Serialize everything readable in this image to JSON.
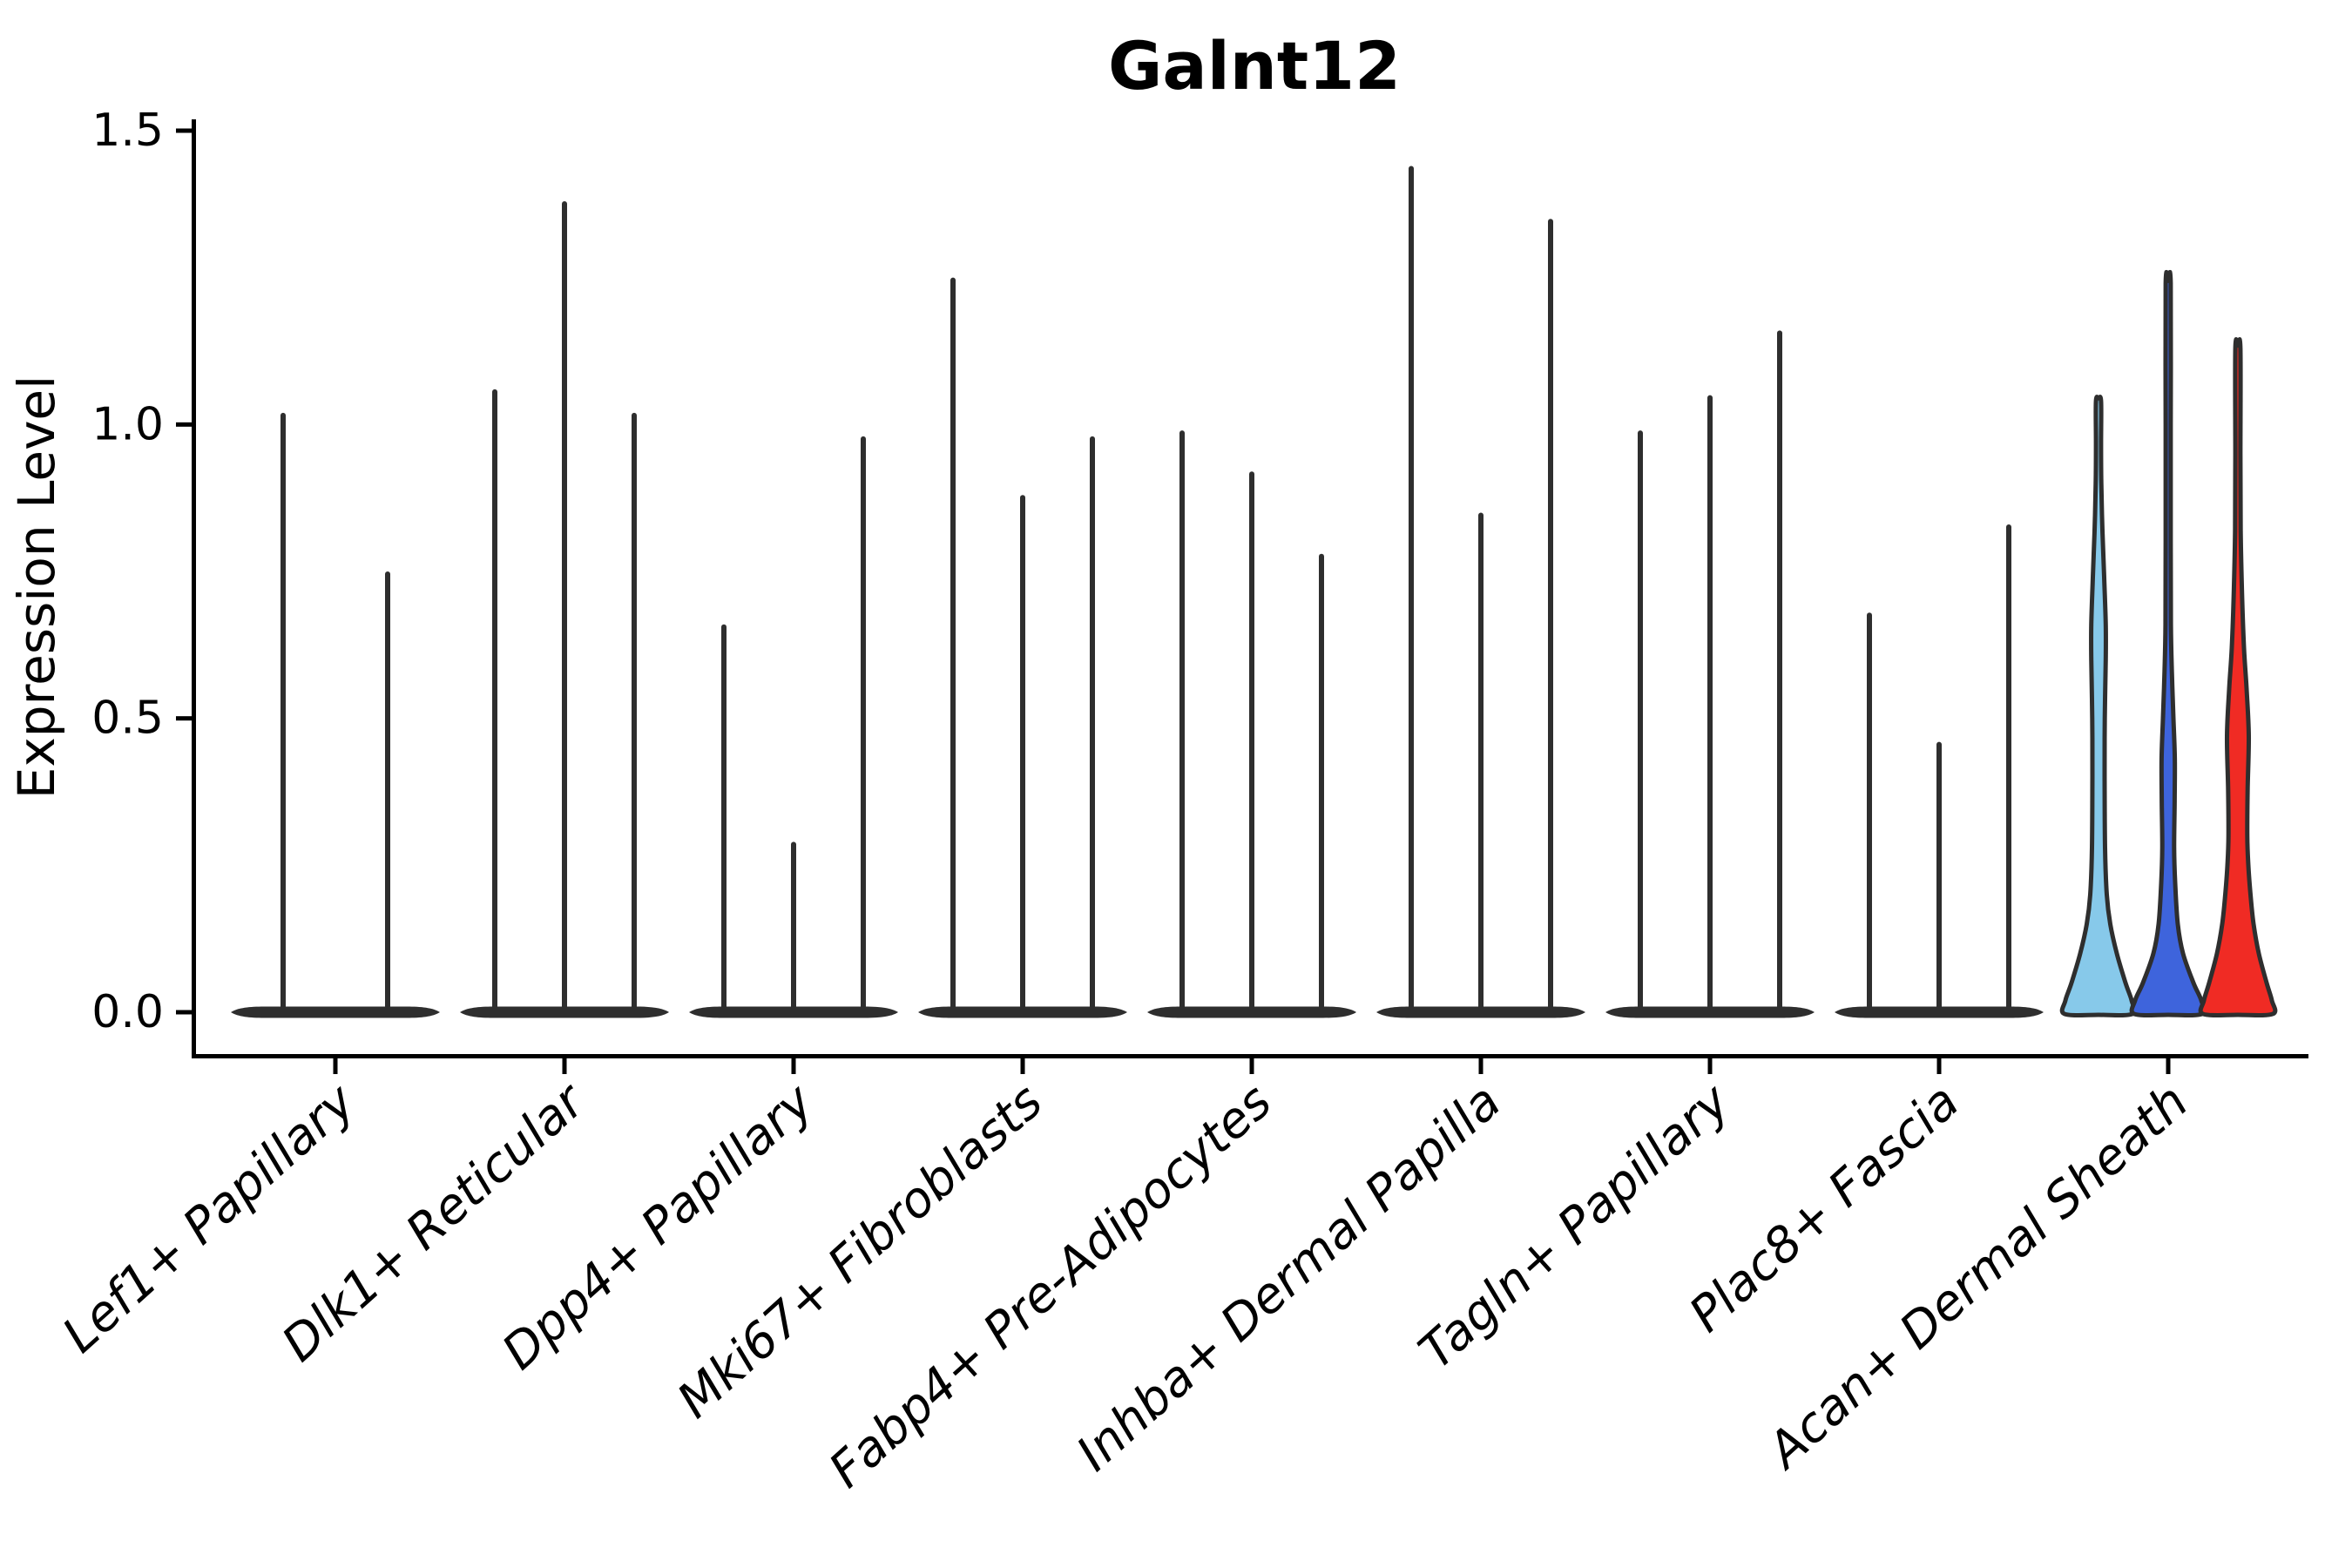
{
  "chart_data": {
    "type": "violin",
    "title": "Galnt12",
    "ylabel": "Expression Level",
    "xlabel": "",
    "ylim": [
      0.0,
      1.5
    ],
    "yticks": [
      {
        "value": 0.0,
        "label": "0.0"
      },
      {
        "value": 0.5,
        "label": "0.5"
      },
      {
        "value": 1.0,
        "label": "1.0"
      },
      {
        "value": 1.5,
        "label": "1.5"
      }
    ],
    "grid": false,
    "legend": "none",
    "outline_color": "#2e2e2e",
    "axis_color": "#000000",
    "categories": [
      "Lef1+ Papillary",
      "Dlk1+ Reticular",
      "Dpp4+ Papillary",
      "Mki67+ Fibroblasts",
      "Fabp4+ Pre-Adipocytes",
      "Inhba+ Dermal Papilla",
      "Tagln+ Papillary",
      "Plac8+ Fascia",
      "Acan+ Dermal Sheath"
    ],
    "groups": [
      {
        "label": "Lef1+ Papillary",
        "violins": [
          {
            "max_expression": 1.02,
            "color": null
          },
          {
            "max_expression": 0.75,
            "color": null
          }
        ]
      },
      {
        "label": "Dlk1+ Reticular",
        "violins": [
          {
            "max_expression": 1.06,
            "color": null
          },
          {
            "max_expression": 1.38,
            "color": null
          },
          {
            "max_expression": 1.02,
            "color": null
          }
        ]
      },
      {
        "label": "Dpp4+ Papillary",
        "violins": [
          {
            "max_expression": 0.66,
            "color": null
          },
          {
            "max_expression": 0.29,
            "color": null
          },
          {
            "max_expression": 0.98,
            "color": null
          }
        ]
      },
      {
        "label": "Mki67+ Fibroblasts",
        "violins": [
          {
            "max_expression": 1.25,
            "color": null
          },
          {
            "max_expression": 0.88,
            "color": null
          },
          {
            "max_expression": 0.98,
            "color": null
          }
        ]
      },
      {
        "label": "Fabp4+ Pre-Adipocytes",
        "violins": [
          {
            "max_expression": 0.99,
            "color": null
          },
          {
            "max_expression": 0.92,
            "color": null
          },
          {
            "max_expression": 0.78,
            "color": null
          }
        ]
      },
      {
        "label": "Inhba+ Dermal Papilla",
        "violins": [
          {
            "max_expression": 1.44,
            "color": null
          },
          {
            "max_expression": 0.85,
            "color": null
          },
          {
            "max_expression": 1.35,
            "color": null
          }
        ]
      },
      {
        "label": "Tagln+ Papillary",
        "violins": [
          {
            "max_expression": 0.99,
            "color": null
          },
          {
            "max_expression": 1.05,
            "color": null
          },
          {
            "max_expression": 1.16,
            "color": null
          }
        ]
      },
      {
        "label": "Plac8+ Fascia",
        "violins": [
          {
            "max_expression": 0.68,
            "color": null
          },
          {
            "max_expression": 0.46,
            "color": null
          },
          {
            "max_expression": 0.83,
            "color": null
          }
        ]
      },
      {
        "label": "Acan+ Dermal Sheath",
        "violins": [
          {
            "max_expression": 1.04,
            "color": "#87C9EA",
            "profile": [
              [
                0,
                39
              ],
              [
                0.02,
                38
              ],
              [
                0.05,
                31
              ],
              [
                0.1,
                21
              ],
              [
                0.15,
                13.5
              ],
              [
                0.2,
                9.5
              ],
              [
                0.28,
                7.5
              ],
              [
                0.4,
                7.0
              ],
              [
                0.5,
                7.2
              ],
              [
                0.6,
                8.3
              ],
              [
                0.66,
                8.3
              ],
              [
                0.74,
                6.5
              ],
              [
                0.82,
                4.5
              ],
              [
                0.9,
                3.2
              ],
              [
                0.97,
                2.9
              ],
              [
                1.04,
                2.9
              ]
            ]
          },
          {
            "max_expression": 1.24,
            "color": "#3E64DC",
            "profile": [
              [
                0,
                39
              ],
              [
                0.02,
                38
              ],
              [
                0.05,
                29
              ],
              [
                0.1,
                17
              ],
              [
                0.15,
                11
              ],
              [
                0.22,
                8
              ],
              [
                0.28,
                6.8
              ],
              [
                0.36,
                7.4
              ],
              [
                0.43,
                7.6
              ],
              [
                0.5,
                6.0
              ],
              [
                0.58,
                4.2
              ],
              [
                0.66,
                3.1
              ],
              [
                0.8,
                2.9
              ],
              [
                1.0,
                2.9
              ],
              [
                1.24,
                2.9
              ]
            ]
          },
          {
            "max_expression": 1.13,
            "color": "#F02B24",
            "profile": [
              [
                0,
                40
              ],
              [
                0.02,
                39
              ],
              [
                0.05,
                33
              ],
              [
                0.1,
                24
              ],
              [
                0.15,
                18
              ],
              [
                0.2,
                14.5
              ],
              [
                0.25,
                12
              ],
              [
                0.3,
                10.8
              ],
              [
                0.38,
                11.2
              ],
              [
                0.47,
                12.5
              ],
              [
                0.55,
                10
              ],
              [
                0.62,
                7
              ],
              [
                0.72,
                4.6
              ],
              [
                0.82,
                3.2
              ],
              [
                0.95,
                2.9
              ],
              [
                1.13,
                2.9
              ]
            ]
          }
        ]
      }
    ]
  }
}
